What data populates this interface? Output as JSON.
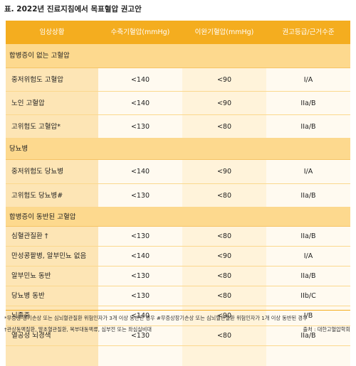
{
  "caption": "표. 2022년 진료지침에서 목표혈압 권고안",
  "headers": [
    "임상상황",
    "수축기혈압(mmHg)",
    "이완기혈압(mmHg)",
    "권고등급/근거수준"
  ],
  "groups": [
    {
      "title": "합병증이 없는 고혈압",
      "rows": [
        {
          "label": "중저위험도 고혈압",
          "sbp": "<140",
          "dbp": "<90",
          "grade": "I/A"
        },
        {
          "label": "노인 고혈압",
          "sbp": "<140",
          "dbp": "<90",
          "grade": "IIa/B"
        },
        {
          "label": "고위험도 고혈압*",
          "sbp": "<130",
          "dbp": "<80",
          "grade": "IIa/B"
        }
      ]
    },
    {
      "title": "당뇨병",
      "rows": [
        {
          "label": "중저위험도 당뇨병",
          "sbp": "<140",
          "dbp": "<90",
          "grade": "I/A"
        },
        {
          "label": "고위험도 당뇨병#",
          "sbp": "<130",
          "dbp": "<80",
          "grade": "IIa/B"
        }
      ]
    },
    {
      "title": "합병증이 동반된 고혈압",
      "rows": [
        {
          "label": "심혈관질환 †",
          "sbp": "<130",
          "dbp": "<80",
          "grade": "IIa/B"
        },
        {
          "label": "만성콩팥병, 알부민뇨 없음",
          "sbp": "<140",
          "dbp": "<90",
          "grade": "I/A"
        },
        {
          "label": "알부민뇨 동반",
          "sbp": "<130",
          "dbp": "<80",
          "grade": "IIa/B"
        },
        {
          "label": "당뇨병 동반",
          "sbp": "<130",
          "dbp": "<80",
          "grade": "IIb/C"
        },
        {
          "label": "뇌졸중",
          "sbp": "<140",
          "dbp": "<90",
          "grade": "I/B"
        },
        {
          "label": "열공성 뇌경색",
          "sbp": "<130",
          "dbp": "<80",
          "grade": "IIa/B"
        }
      ]
    }
  ],
  "footnote1": "*무증상 장기손상 또는 심뇌혈관질환 위험인자가 3개 이상 동반된 경우 #무증상장기손상 또는 심뇌혈관질환 위험인자가 1개 이상 동반된 경우",
  "footnote2": "†관상동맥질환, 말초혈관질환, 복부대동맥류, 심부전 또는 좌심실비대",
  "source": "출처 : 대한고혈압학회",
  "colors": {
    "header": "#f4ad1f",
    "group": "#fdd98e",
    "label": "#fde5b5",
    "cell": "#fffaf0"
  }
}
